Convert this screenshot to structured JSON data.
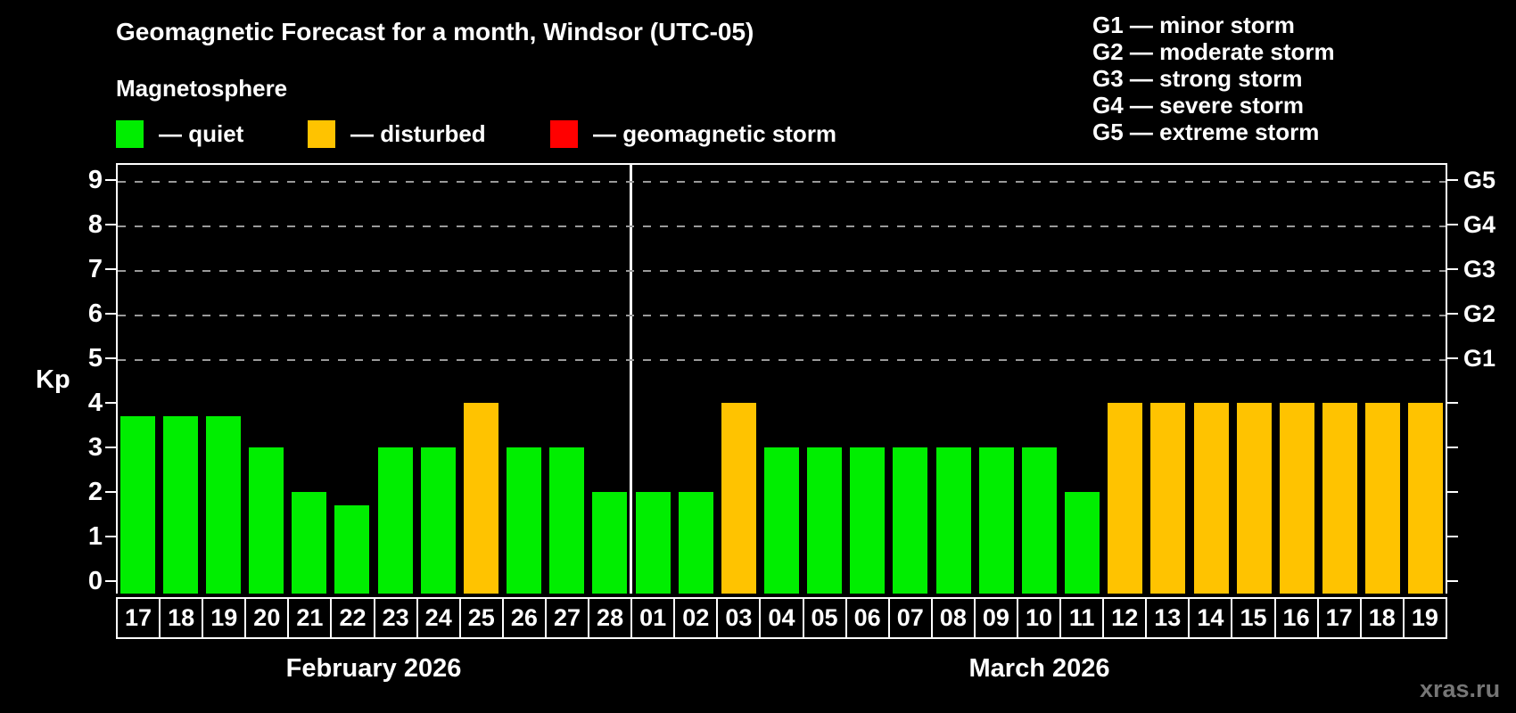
{
  "title": "Geomagnetic Forecast for a month, Windsor (UTC-05)",
  "subtitle": "Magnetosphere",
  "legend": {
    "items": [
      {
        "name": "quiet",
        "label": "— quiet",
        "color": "#00ee00"
      },
      {
        "name": "disturbed",
        "label": "— disturbed",
        "color": "#ffc300"
      },
      {
        "name": "geomagnetic-storm",
        "label": "— geomagnetic storm",
        "color": "#ff0000"
      }
    ]
  },
  "gscale_legend": [
    "G1 — minor storm",
    "G2 — moderate storm",
    "G3 — strong storm",
    "G4 — severe storm",
    "G5 — extreme storm"
  ],
  "watermark": "xras.ru",
  "chart_data": {
    "type": "bar",
    "title": "Geomagnetic Forecast for a month, Windsor (UTC-05)",
    "ylabel": "Kp",
    "xlabel": "",
    "ylim": [
      -0.28,
      9.38
    ],
    "yticks": [
      0,
      1,
      2,
      3,
      4,
      5,
      6,
      7,
      8,
      9
    ],
    "grid": "dashed horizontal lines at Kp 5-9",
    "gridlines_at_kp": [
      5,
      6,
      7,
      8,
      9
    ],
    "right_axis_labels": [
      {
        "kp": 5,
        "label": "G1"
      },
      {
        "kp": 6,
        "label": "G2"
      },
      {
        "kp": 7,
        "label": "G3"
      },
      {
        "kp": 8,
        "label": "G4"
      },
      {
        "kp": 9,
        "label": "G5"
      }
    ],
    "legend_position": "top-left",
    "status_colors": {
      "quiet": "#00ee00",
      "disturbed": "#ffc300",
      "storm": "#ff0000"
    },
    "months": [
      {
        "label": "February 2026",
        "days": [
          {
            "day": "17",
            "kp": 3.7,
            "status": "quiet"
          },
          {
            "day": "18",
            "kp": 3.7,
            "status": "quiet"
          },
          {
            "day": "19",
            "kp": 3.7,
            "status": "quiet"
          },
          {
            "day": "20",
            "kp": 3.0,
            "status": "quiet"
          },
          {
            "day": "21",
            "kp": 2.0,
            "status": "quiet"
          },
          {
            "day": "22",
            "kp": 1.7,
            "status": "quiet"
          },
          {
            "day": "23",
            "kp": 3.0,
            "status": "quiet"
          },
          {
            "day": "24",
            "kp": 3.0,
            "status": "quiet"
          },
          {
            "day": "25",
            "kp": 4.0,
            "status": "disturbed"
          },
          {
            "day": "26",
            "kp": 3.0,
            "status": "quiet"
          },
          {
            "day": "27",
            "kp": 3.0,
            "status": "quiet"
          },
          {
            "day": "28",
            "kp": 2.0,
            "status": "quiet"
          }
        ]
      },
      {
        "label": "March 2026",
        "days": [
          {
            "day": "01",
            "kp": 2.0,
            "status": "quiet"
          },
          {
            "day": "02",
            "kp": 2.0,
            "status": "quiet"
          },
          {
            "day": "03",
            "kp": 4.0,
            "status": "disturbed"
          },
          {
            "day": "04",
            "kp": 3.0,
            "status": "quiet"
          },
          {
            "day": "05",
            "kp": 3.0,
            "status": "quiet"
          },
          {
            "day": "06",
            "kp": 3.0,
            "status": "quiet"
          },
          {
            "day": "07",
            "kp": 3.0,
            "status": "quiet"
          },
          {
            "day": "08",
            "kp": 3.0,
            "status": "quiet"
          },
          {
            "day": "09",
            "kp": 3.0,
            "status": "quiet"
          },
          {
            "day": "10",
            "kp": 3.0,
            "status": "quiet"
          },
          {
            "day": "11",
            "kp": 2.0,
            "status": "quiet"
          },
          {
            "day": "12",
            "kp": 4.0,
            "status": "disturbed"
          },
          {
            "day": "13",
            "kp": 4.0,
            "status": "disturbed"
          },
          {
            "day": "14",
            "kp": 4.0,
            "status": "disturbed"
          },
          {
            "day": "15",
            "kp": 4.0,
            "status": "disturbed"
          },
          {
            "day": "16",
            "kp": 4.0,
            "status": "disturbed"
          },
          {
            "day": "17",
            "kp": 4.0,
            "status": "disturbed"
          },
          {
            "day": "18",
            "kp": 4.0,
            "status": "disturbed"
          },
          {
            "day": "19",
            "kp": 4.0,
            "status": "disturbed"
          }
        ]
      }
    ]
  }
}
